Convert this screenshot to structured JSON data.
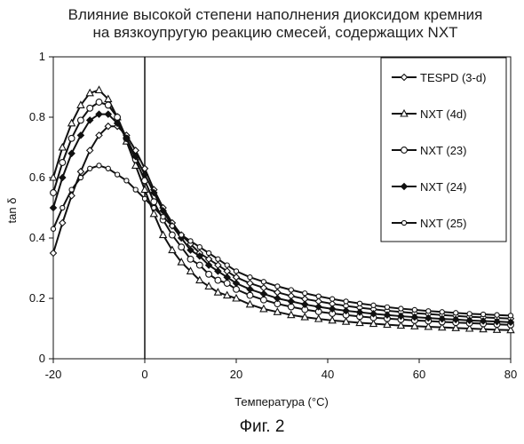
{
  "chart_data": {
    "type": "line",
    "title": [
      "Влияние высокой степени наполнения диоксидом кремния",
      "на вязкоупругую реакцию смесей, содержащих NXT"
    ],
    "xlabel": "Температура (°C)",
    "ylabel": "tan δ",
    "xlim": [
      -20,
      80
    ],
    "ylim": [
      0,
      1
    ],
    "xticks": [
      -20,
      0,
      20,
      40,
      60,
      80
    ],
    "yticks": [
      0,
      0.2,
      0.4,
      0.6,
      0.8,
      1
    ],
    "xtick_labels": [
      "-20",
      "0",
      "20",
      "40",
      "60",
      "80"
    ],
    "ytick_labels": [
      "0",
      "0.2",
      "0.4",
      "0.6",
      "0.8",
      "1"
    ],
    "legend_placement": "right",
    "grid": false,
    "vertical_reference_line_x": 0,
    "series": [
      {
        "name": "TESPD (3-d)",
        "marker": "diamond",
        "x": [
          -20,
          -18,
          -16,
          -14,
          -12,
          -10,
          -8,
          -6,
          -4,
          -2,
          0,
          2,
          4,
          6,
          8,
          10,
          12,
          14,
          16,
          18,
          20,
          23,
          26,
          29,
          32,
          35,
          38,
          41,
          44,
          47,
          50,
          53,
          56,
          59,
          62,
          65,
          68,
          71,
          74,
          77,
          80
        ],
        "values": [
          0.35,
          0.45,
          0.54,
          0.62,
          0.69,
          0.74,
          0.77,
          0.77,
          0.74,
          0.69,
          0.63,
          0.56,
          0.5,
          0.45,
          0.41,
          0.38,
          0.35,
          0.33,
          0.31,
          0.29,
          0.27,
          0.25,
          0.235,
          0.22,
          0.208,
          0.198,
          0.19,
          0.182,
          0.175,
          0.169,
          0.164,
          0.159,
          0.155,
          0.151,
          0.148,
          0.145,
          0.142,
          0.139,
          0.137,
          0.135,
          0.133
        ]
      },
      {
        "name": "NXT (4d)",
        "marker": "triangle",
        "x": [
          -20,
          -18,
          -16,
          -14,
          -12,
          -10,
          -8,
          -6,
          -4,
          -2,
          0,
          2,
          4,
          6,
          8,
          10,
          12,
          14,
          16,
          18,
          20,
          23,
          26,
          29,
          32,
          35,
          38,
          41,
          44,
          47,
          50,
          53,
          56,
          59,
          62,
          65,
          68,
          71,
          74,
          77,
          80
        ],
        "values": [
          0.6,
          0.7,
          0.78,
          0.84,
          0.88,
          0.89,
          0.86,
          0.8,
          0.72,
          0.64,
          0.56,
          0.48,
          0.41,
          0.36,
          0.32,
          0.29,
          0.26,
          0.24,
          0.22,
          0.21,
          0.2,
          0.18,
          0.165,
          0.155,
          0.145,
          0.138,
          0.132,
          0.127,
          0.123,
          0.119,
          0.116,
          0.113,
          0.11,
          0.108,
          0.106,
          0.104,
          0.102,
          0.1,
          0.098,
          0.096,
          0.095
        ]
      },
      {
        "name": "NXT (23)",
        "marker": "circle",
        "x": [
          -20,
          -18,
          -16,
          -14,
          -12,
          -10,
          -8,
          -6,
          -4,
          -2,
          0,
          2,
          4,
          6,
          8,
          10,
          12,
          14,
          16,
          18,
          20,
          23,
          26,
          29,
          32,
          35,
          38,
          41,
          44,
          47,
          50,
          53,
          56,
          59,
          62,
          65,
          68,
          71,
          74,
          77,
          80
        ],
        "values": [
          0.55,
          0.65,
          0.73,
          0.79,
          0.83,
          0.85,
          0.84,
          0.8,
          0.73,
          0.66,
          0.59,
          0.52,
          0.46,
          0.41,
          0.37,
          0.33,
          0.31,
          0.28,
          0.26,
          0.25,
          0.23,
          0.21,
          0.195,
          0.182,
          0.172,
          0.163,
          0.156,
          0.15,
          0.145,
          0.14,
          0.136,
          0.133,
          0.13,
          0.127,
          0.125,
          0.122,
          0.12,
          0.118,
          0.116,
          0.114,
          0.112
        ]
      },
      {
        "name": "NXT (24)",
        "marker": "diamond-filled",
        "x": [
          -20,
          -18,
          -16,
          -14,
          -12,
          -10,
          -8,
          -6,
          -4,
          -2,
          0,
          2,
          4,
          6,
          8,
          10,
          12,
          14,
          16,
          18,
          20,
          23,
          26,
          29,
          32,
          35,
          38,
          41,
          44,
          47,
          50,
          53,
          56,
          59,
          62,
          65,
          68,
          71,
          74,
          77,
          80
        ],
        "values": [
          0.5,
          0.6,
          0.68,
          0.74,
          0.79,
          0.81,
          0.81,
          0.78,
          0.73,
          0.67,
          0.61,
          0.55,
          0.49,
          0.44,
          0.4,
          0.36,
          0.34,
          0.31,
          0.29,
          0.27,
          0.25,
          0.23,
          0.215,
          0.2,
          0.19,
          0.18,
          0.172,
          0.165,
          0.159,
          0.154,
          0.149,
          0.145,
          0.141,
          0.138,
          0.135,
          0.132,
          0.13,
          0.127,
          0.125,
          0.123,
          0.121
        ]
      },
      {
        "name": "NXT (25)",
        "marker": "circle-small",
        "x": [
          -20,
          -18,
          -16,
          -14,
          -12,
          -10,
          -8,
          -6,
          -4,
          -2,
          0,
          2,
          4,
          6,
          8,
          10,
          12,
          14,
          16,
          18,
          20,
          23,
          26,
          29,
          32,
          35,
          38,
          41,
          44,
          47,
          50,
          53,
          56,
          59,
          62,
          65,
          68,
          71,
          74,
          77,
          80
        ],
        "values": [
          0.43,
          0.5,
          0.56,
          0.6,
          0.63,
          0.64,
          0.63,
          0.61,
          0.59,
          0.56,
          0.53,
          0.5,
          0.47,
          0.44,
          0.41,
          0.39,
          0.37,
          0.35,
          0.33,
          0.31,
          0.29,
          0.27,
          0.255,
          0.24,
          0.228,
          0.217,
          0.207,
          0.198,
          0.19,
          0.183,
          0.177,
          0.171,
          0.166,
          0.162,
          0.158,
          0.155,
          0.152,
          0.149,
          0.147,
          0.145,
          0.143
        ]
      }
    ]
  },
  "caption": "Фиг. 2",
  "line_color": "#111111",
  "marker_fill": "#ffffff"
}
